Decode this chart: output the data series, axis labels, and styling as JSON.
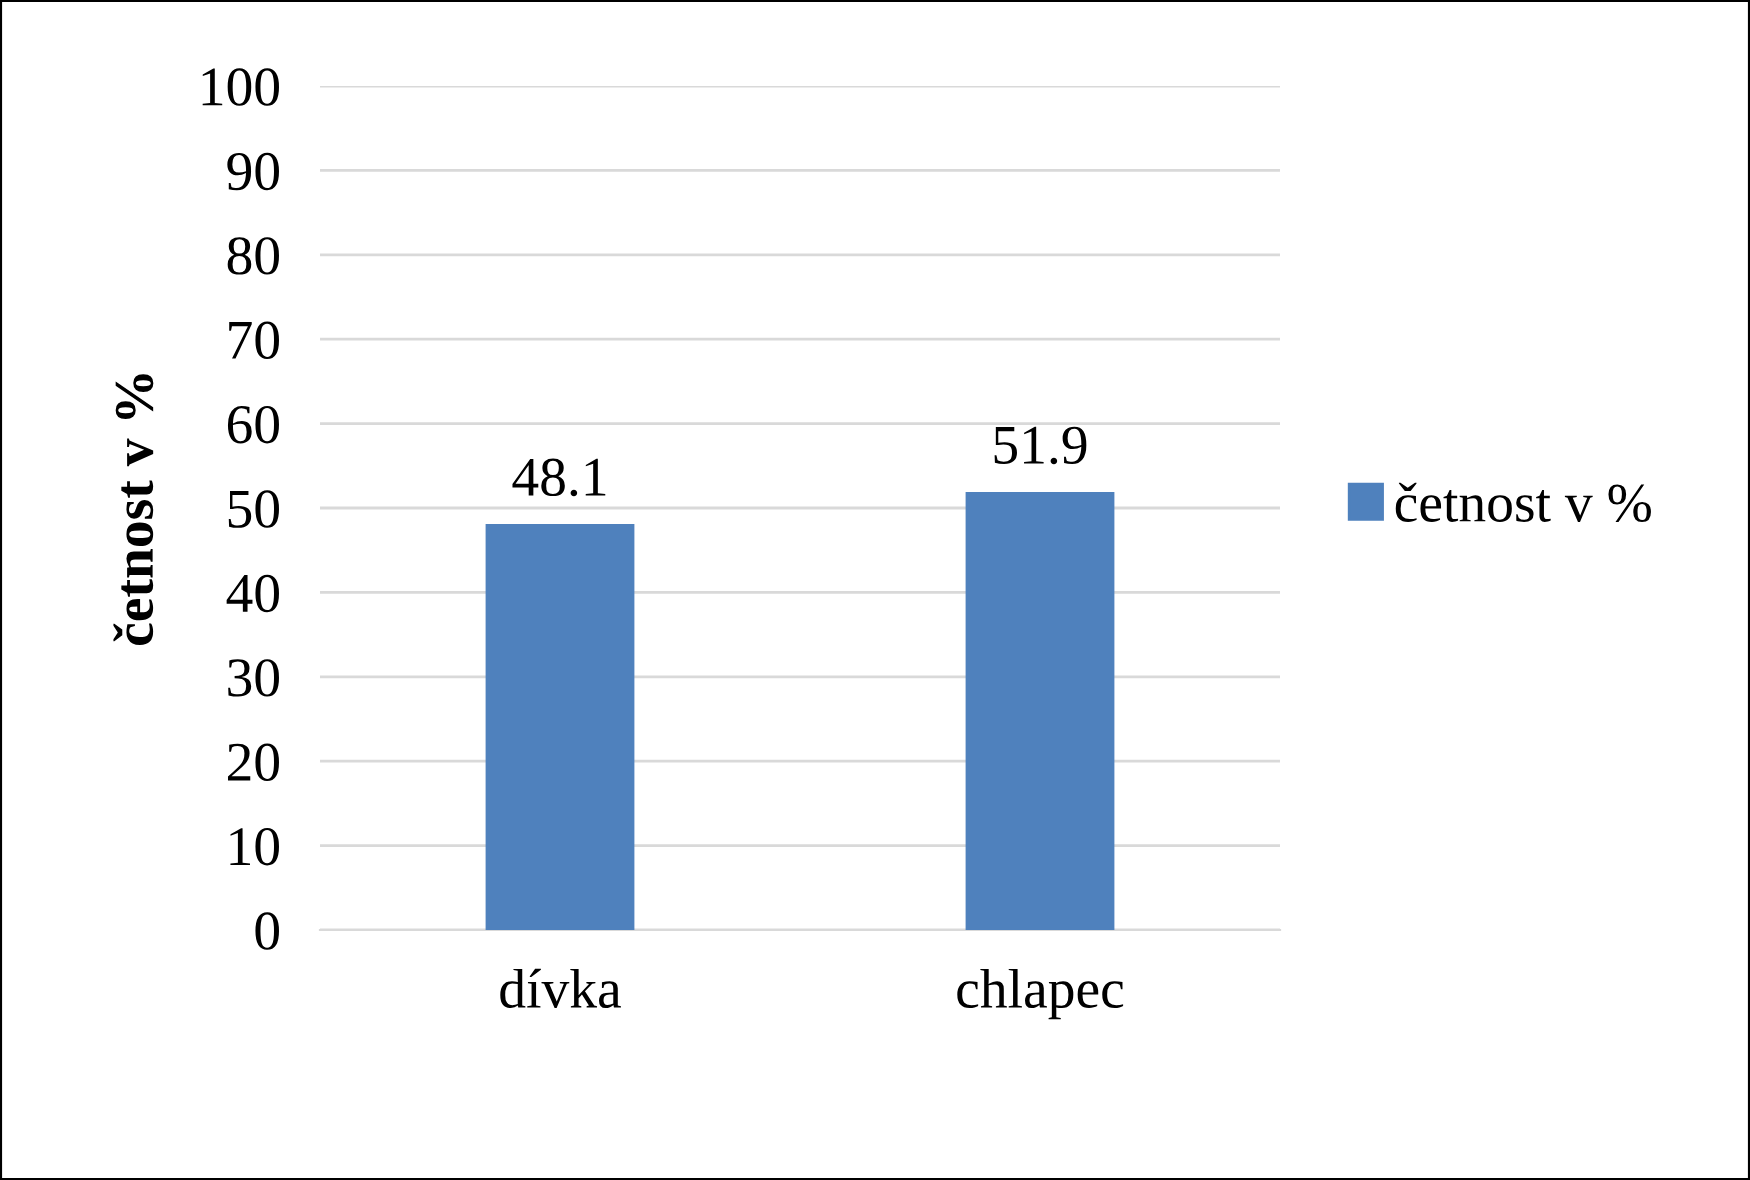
{
  "chart_data": {
    "type": "bar",
    "ylabel": "četnost v %",
    "categories": [
      "dívka",
      "chlapec"
    ],
    "series": [
      {
        "name": "četnost v %",
        "color": "#4f81bd",
        "values": [
          48.1,
          51.9
        ]
      }
    ],
    "ylim": [
      0,
      100
    ],
    "yticks": [
      0,
      10,
      20,
      30,
      40,
      50,
      60,
      70,
      80,
      90,
      100
    ],
    "grid": "y",
    "legend": "right",
    "data_labels": true
  }
}
